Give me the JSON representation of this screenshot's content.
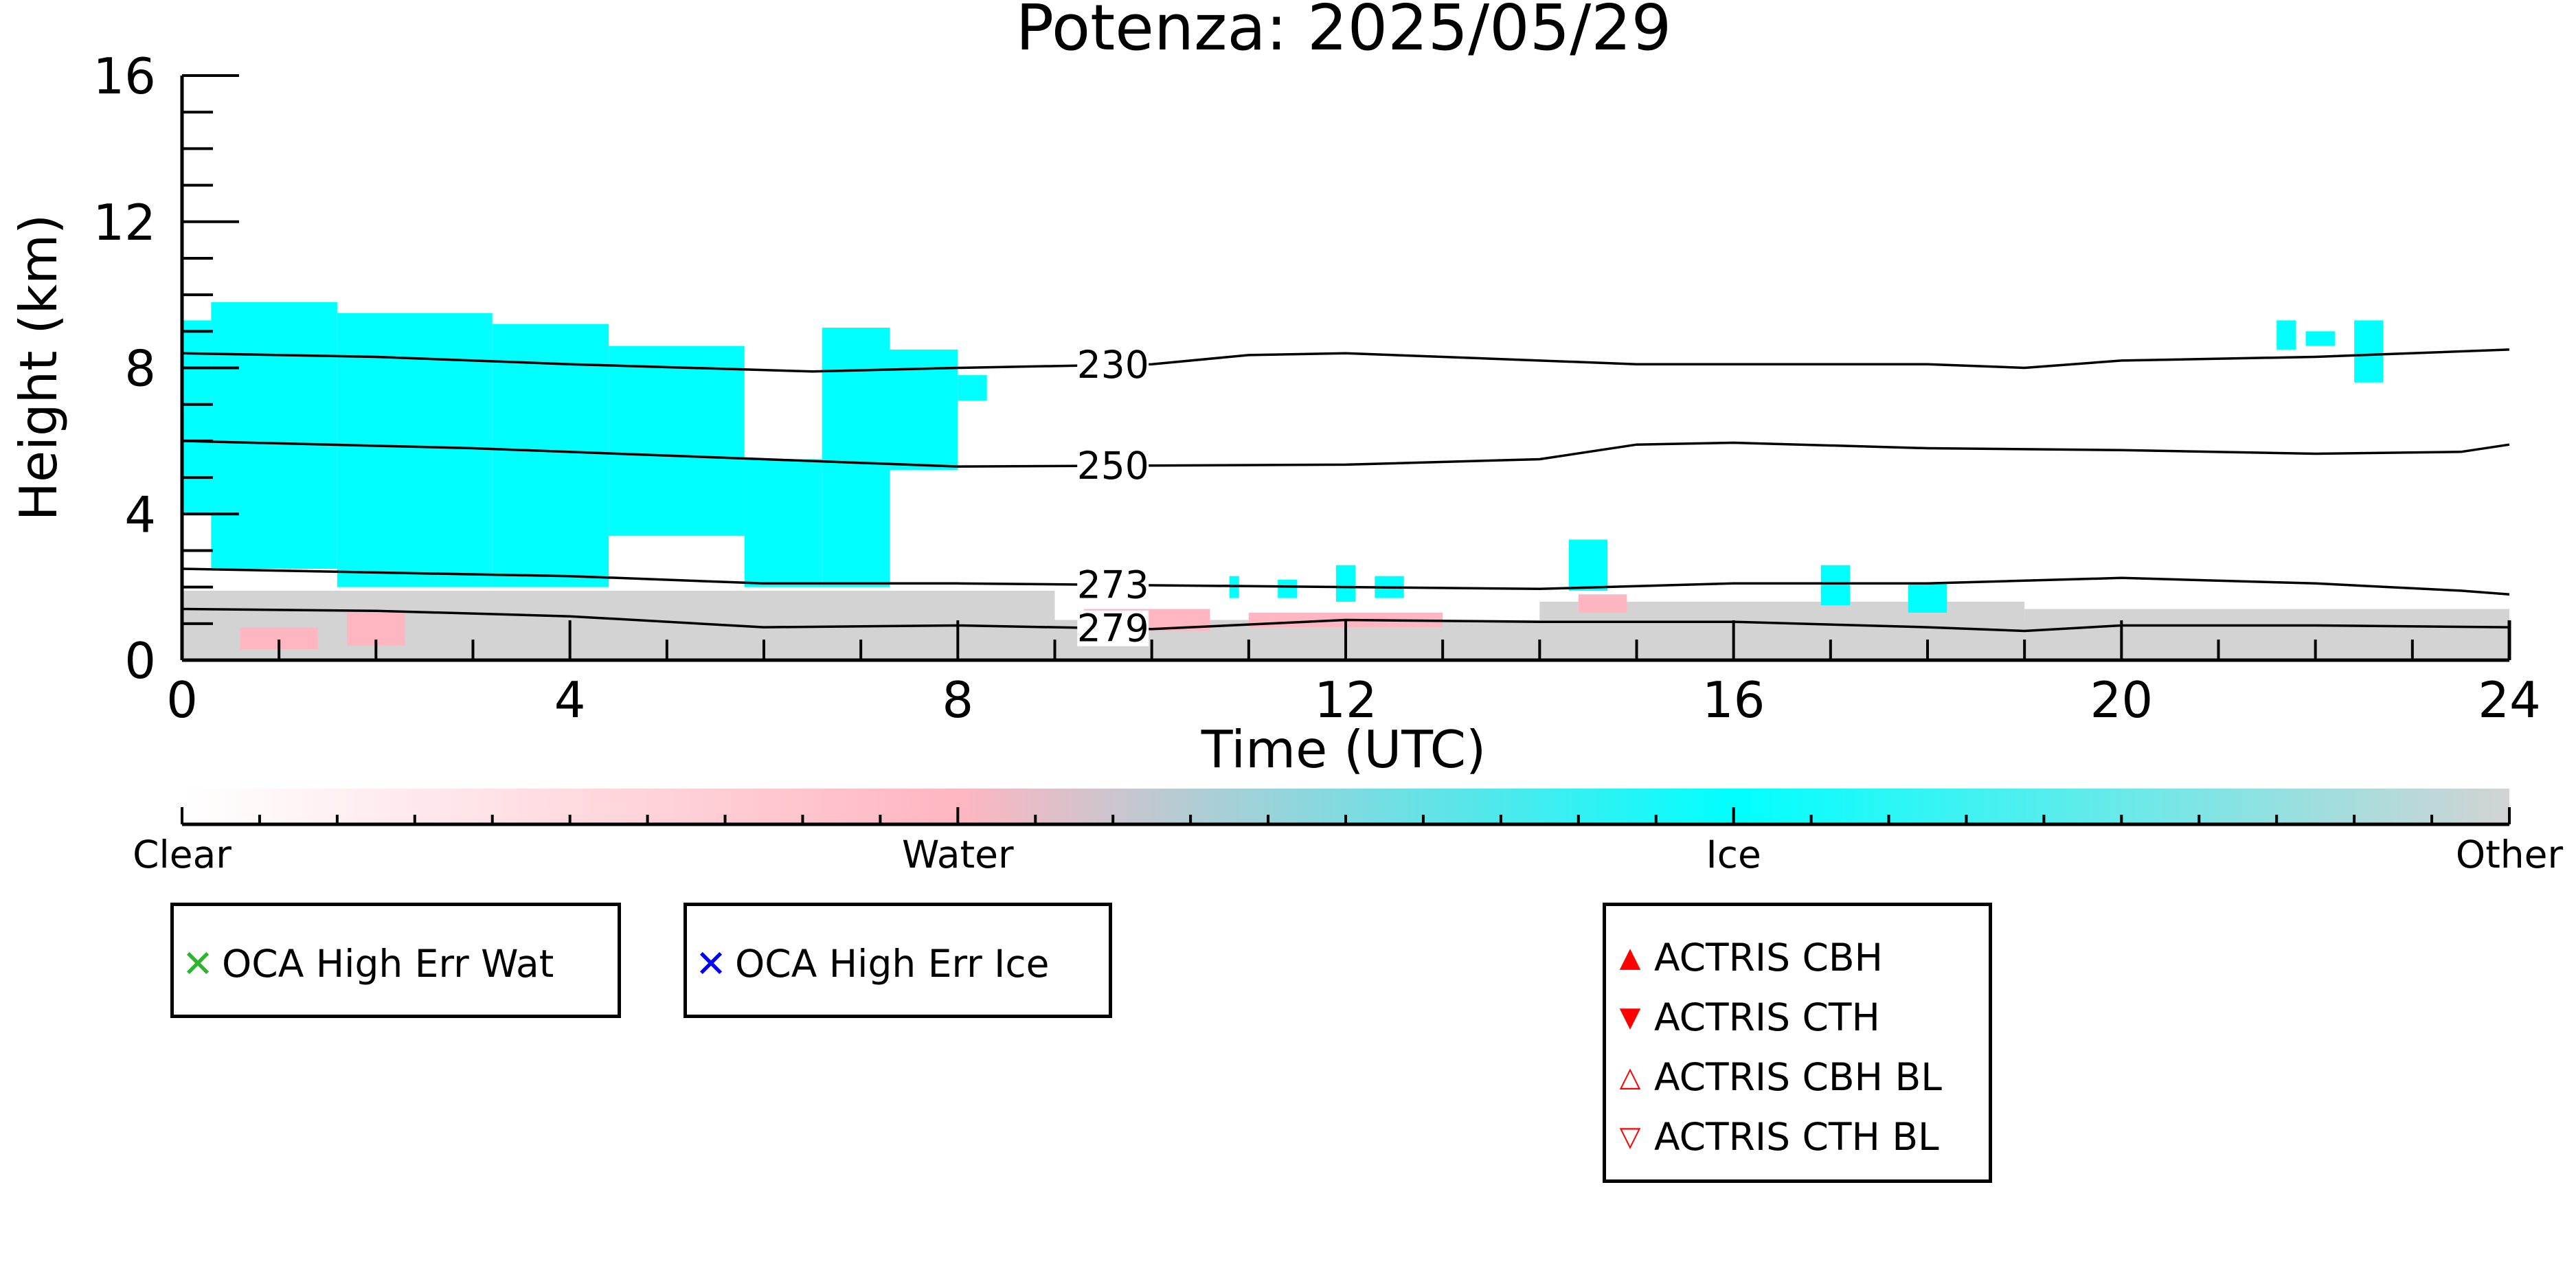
{
  "chart_data": {
    "type": "heatmap",
    "title": "Potenza: 2025/05/29",
    "xlabel": "Time (UTC)",
    "ylabel": "Height (km)",
    "xlim": [
      0,
      24
    ],
    "ylim": [
      0,
      16
    ],
    "x_ticks": [
      "0",
      "4",
      "8",
      "12",
      "16",
      "20",
      "24"
    ],
    "y_ticks": [
      "0",
      "4",
      "8",
      "12",
      "16"
    ],
    "categories": [
      "Clear",
      "Water",
      "Ice",
      "Other"
    ],
    "colors": {
      "clear": "#ffffff",
      "water": "#ffb6c1",
      "ice": "#00ffff",
      "other": "#d3d3d3",
      "contour": "#000000"
    },
    "contours": [
      {
        "label": "230",
        "label_x": 9.6,
        "points": [
          [
            0,
            8.4
          ],
          [
            2,
            8.3
          ],
          [
            4,
            8.1
          ],
          [
            6.5,
            7.9
          ],
          [
            8,
            8.0
          ],
          [
            10,
            8.1
          ],
          [
            11,
            8.35
          ],
          [
            12,
            8.4
          ],
          [
            13,
            8.3
          ],
          [
            15,
            8.1
          ],
          [
            18,
            8.1
          ],
          [
            19,
            8.0
          ],
          [
            20,
            8.2
          ],
          [
            22,
            8.3
          ],
          [
            24,
            8.5
          ]
        ]
      },
      {
        "label": "250",
        "label_x": 9.6,
        "points": [
          [
            0,
            6.0
          ],
          [
            3,
            5.8
          ],
          [
            6,
            5.5
          ],
          [
            8,
            5.3
          ],
          [
            12,
            5.35
          ],
          [
            14,
            5.5
          ],
          [
            15,
            5.9
          ],
          [
            16,
            5.95
          ],
          [
            18,
            5.8
          ],
          [
            20,
            5.75
          ],
          [
            22,
            5.65
          ],
          [
            23.5,
            5.7
          ],
          [
            24,
            5.9
          ]
        ]
      },
      {
        "label": "273",
        "label_x": 9.6,
        "points": [
          [
            0,
            2.5
          ],
          [
            2,
            2.4
          ],
          [
            4,
            2.3
          ],
          [
            6,
            2.1
          ],
          [
            8,
            2.1
          ],
          [
            10,
            2.05
          ],
          [
            12,
            2.0
          ],
          [
            14,
            1.95
          ],
          [
            16,
            2.1
          ],
          [
            18,
            2.1
          ],
          [
            20,
            2.25
          ],
          [
            22,
            2.1
          ],
          [
            23.5,
            1.9
          ],
          [
            24,
            1.8
          ]
        ]
      },
      {
        "label": "279",
        "label_x": 9.6,
        "points": [
          [
            0,
            1.4
          ],
          [
            2,
            1.35
          ],
          [
            4,
            1.2
          ],
          [
            6,
            0.9
          ],
          [
            8,
            0.95
          ],
          [
            10,
            0.85
          ],
          [
            12,
            1.1
          ],
          [
            14,
            1.05
          ],
          [
            16,
            1.05
          ],
          [
            18,
            0.9
          ],
          [
            19,
            0.8
          ],
          [
            20,
            0.95
          ],
          [
            22,
            0.95
          ],
          [
            24,
            0.9
          ]
        ]
      }
    ],
    "ice_regions": [
      {
        "x": [
          0,
          0.3
        ],
        "y": [
          4.0,
          9.3
        ]
      },
      {
        "x": [
          0.3,
          1.6
        ],
        "y": [
          2.5,
          9.8
        ]
      },
      {
        "x": [
          1.6,
          3.2
        ],
        "y": [
          2.0,
          9.5
        ]
      },
      {
        "x": [
          3.2,
          4.4
        ],
        "y": [
          2.0,
          9.2
        ]
      },
      {
        "x": [
          4.4,
          5.8
        ],
        "y": [
          3.4,
          8.6
        ]
      },
      {
        "x": [
          5.8,
          6.6
        ],
        "y": [
          2.0,
          5.5
        ]
      },
      {
        "x": [
          6.6,
          7.3
        ],
        "y": [
          2.0,
          9.1
        ]
      },
      {
        "x": [
          7.3,
          8.0
        ],
        "y": [
          5.2,
          8.5
        ]
      },
      {
        "x": [
          8.0,
          8.3
        ],
        "y": [
          7.1,
          7.8
        ]
      },
      {
        "x": [
          10.8,
          10.9
        ],
        "y": [
          1.7,
          2.3
        ]
      },
      {
        "x": [
          11.3,
          11.5
        ],
        "y": [
          1.7,
          2.2
        ]
      },
      {
        "x": [
          11.9,
          12.1
        ],
        "y": [
          1.6,
          2.6
        ]
      },
      {
        "x": [
          12.3,
          12.6
        ],
        "y": [
          1.7,
          2.3
        ]
      },
      {
        "x": [
          14.3,
          14.7
        ],
        "y": [
          1.9,
          3.3
        ]
      },
      {
        "x": [
          16.9,
          17.2
        ],
        "y": [
          1.5,
          2.6
        ]
      },
      {
        "x": [
          17.8,
          18.2
        ],
        "y": [
          1.3,
          2.1
        ]
      },
      {
        "x": [
          21.6,
          21.8
        ],
        "y": [
          8.5,
          9.3
        ]
      },
      {
        "x": [
          21.9,
          22.2
        ],
        "y": [
          8.6,
          9.0
        ]
      },
      {
        "x": [
          22.4,
          22.7
        ],
        "y": [
          7.6,
          9.3
        ]
      }
    ],
    "water_regions": [
      {
        "x": [
          0.6,
          1.4
        ],
        "y": [
          0.3,
          0.9
        ]
      },
      {
        "x": [
          1.7,
          2.3
        ],
        "y": [
          0.4,
          1.3
        ]
      },
      {
        "x": [
          9.3,
          10.6
        ],
        "y": [
          0.8,
          1.4
        ]
      },
      {
        "x": [
          11.0,
          13.0
        ],
        "y": [
          0.9,
          1.3
        ]
      },
      {
        "x": [
          14.4,
          14.9
        ],
        "y": [
          1.3,
          1.8
        ]
      }
    ],
    "other_regions": [
      {
        "x": [
          0,
          24
        ],
        "y": [
          0,
          1.1
        ]
      },
      {
        "x": [
          0,
          9.0
        ],
        "y": [
          1.1,
          1.9
        ]
      },
      {
        "x": [
          14.0,
          19.0
        ],
        "y": [
          1.1,
          1.6
        ]
      },
      {
        "x": [
          19.0,
          24.0
        ],
        "y": [
          1.1,
          1.4
        ]
      }
    ],
    "legends": [
      {
        "items": [
          {
            "marker": "x-cross",
            "color": "#2db52d",
            "label": "OCA High Err Wat"
          }
        ]
      },
      {
        "items": [
          {
            "marker": "x-cross",
            "color": "#0000ff",
            "label": "OCA High Err Ice"
          }
        ]
      },
      {
        "items": [
          {
            "marker": "triangle-up-filled",
            "color": "#ff0000",
            "label": "ACTRIS CBH"
          },
          {
            "marker": "triangle-down-filled",
            "color": "#ff0000",
            "label": "ACTRIS CTH"
          },
          {
            "marker": "triangle-up-open",
            "color": "#ff0000",
            "label": "ACTRIS CBH BL"
          },
          {
            "marker": "triangle-down-open",
            "color": "#ff0000",
            "label": "ACTRIS CTH BL"
          }
        ]
      }
    ]
  }
}
